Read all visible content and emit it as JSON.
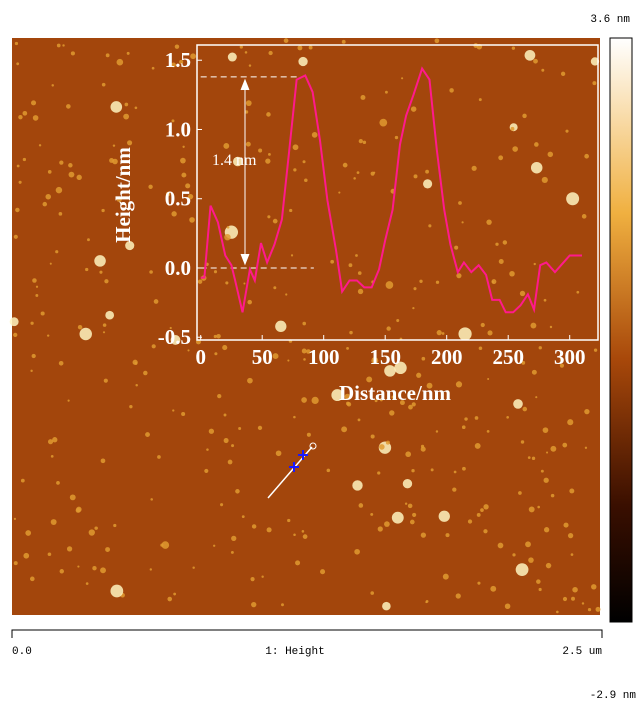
{
  "chart_data": {
    "type": "line",
    "x": [
      0,
      3,
      8,
      14,
      20,
      25,
      28,
      34,
      40,
      44,
      49,
      54,
      60,
      66,
      72,
      78,
      85,
      91,
      97,
      103,
      110,
      115,
      121,
      127,
      133,
      139,
      145,
      150,
      156,
      162,
      167,
      173,
      180,
      186,
      192,
      198,
      203,
      209,
      214,
      220,
      226,
      232,
      237,
      243,
      248,
      254,
      260,
      266,
      271,
      276,
      281,
      288,
      293,
      300,
      310
    ],
    "series": [
      {
        "color": "#ff1a8c",
        "values": [
          -0.07,
          -0.07,
          0.45,
          0.33,
          0.09,
          0.02,
          -0.09,
          -0.32,
          -0.01,
          -0.09,
          0.18,
          0.04,
          0.17,
          0.35,
          0.85,
          1.36,
          1.39,
          1.27,
          0.92,
          0.49,
          0.13,
          -0.17,
          -0.09,
          -0.09,
          -0.14,
          -0.14,
          -0.01,
          0.2,
          0.42,
          0.89,
          1.1,
          1.25,
          1.44,
          1.36,
          0.85,
          0.42,
          0.17,
          -0.03,
          0.04,
          -0.03,
          0.02,
          -0.05,
          -0.23,
          -0.23,
          -0.32,
          -0.32,
          -0.27,
          -0.19,
          -0.3,
          0.02,
          0.04,
          -0.03,
          0.02,
          0.09,
          0.09
        ]
      }
    ],
    "xlabel": "Distance/nm",
    "ylabel": "Height/nm",
    "xlim": [
      -3,
      323
    ],
    "ylim": [
      -0.52,
      1.61
    ],
    "xticks": [
      0,
      50,
      100,
      150,
      200,
      250,
      300
    ],
    "yticks": [
      -0.5,
      {
        "value": 0,
        "label": "0.0"
      },
      0.5,
      {
        "value": 1,
        "label": "1.0"
      },
      1.5
    ],
    "hlines": [
      1.38,
      0
    ],
    "annotation": "1.4 nm"
  },
  "image": {
    "colorbar_max": "3.6 nm",
    "colorbar_min": "-2.9 nm",
    "scale_start": "0.0",
    "channel": "1: Height",
    "scale_end": "2.5 um"
  }
}
